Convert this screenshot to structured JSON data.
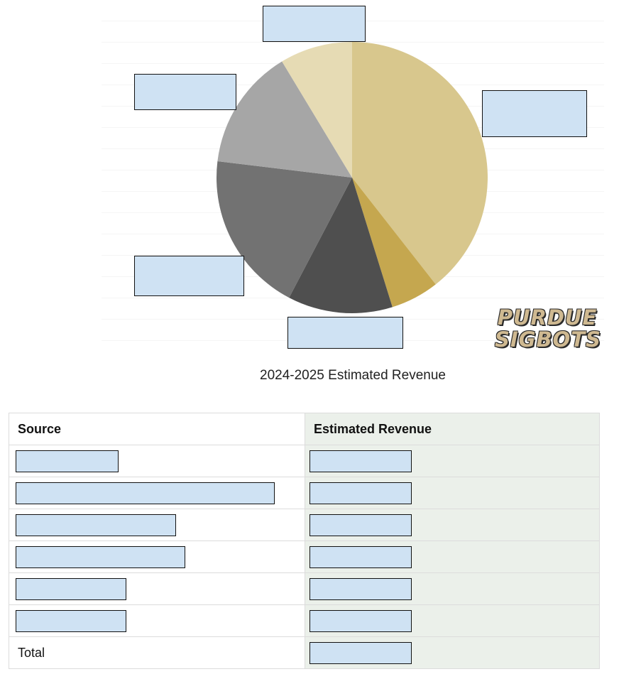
{
  "chart_data": {
    "type": "pie",
    "caption": "2024-2025 Estimated Revenue",
    "slices": [
      {
        "label": "",
        "value": 41,
        "color": "#d8c78d"
      },
      {
        "label": "",
        "value": 6,
        "color": "#c5a74f"
      },
      {
        "label": "",
        "value": 13,
        "color": "#4f4f4f"
      },
      {
        "label": "",
        "value": 20,
        "color": "#727272"
      },
      {
        "label": "",
        "value": 15,
        "color": "#a6a6a6"
      },
      {
        "label": "",
        "value": 9,
        "color": "#e6dbb4"
      }
    ],
    "start_angle_deg": 0,
    "direction": "clockwise",
    "label_boxes_redacted": true
  },
  "logo": {
    "line1": "PURDUE",
    "line2": "SIGBOTS"
  },
  "table": {
    "headers": {
      "source": "Source",
      "revenue": "Estimated Revenue"
    },
    "rows": [
      {
        "source": "",
        "revenue": "",
        "redacted": true
      },
      {
        "source": "",
        "revenue": "",
        "redacted": true
      },
      {
        "source": "",
        "revenue": "",
        "redacted": true
      },
      {
        "source": "",
        "revenue": "",
        "redacted": true
      },
      {
        "source": "",
        "revenue": "",
        "redacted": true
      },
      {
        "source": "",
        "revenue": "",
        "redacted": true
      }
    ],
    "total_label": "Total"
  },
  "colors": {
    "redaction_fill": "#cfe2f3",
    "revenue_column_bg": "#ebf0ea"
  }
}
